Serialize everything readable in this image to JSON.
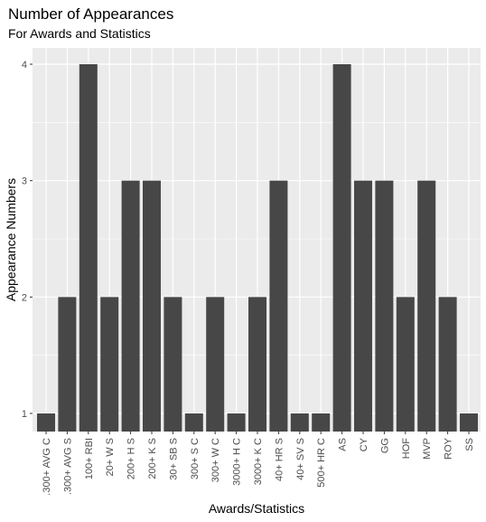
{
  "chart_data": {
    "type": "bar",
    "title": "Number of Appearances",
    "subtitle": "For Awards and Statistics",
    "xlabel": "Awards/Statistics",
    "ylabel": "Appearance Numbers",
    "categories": [
      ".300+ AVG C",
      ".300+ AVG S",
      "100+ RBI",
      "20+ W S",
      "200+ H S",
      "200+ K S",
      "30+ SB S",
      "300+ S C",
      "300+ W C",
      "3000+ H C",
      "3000+ K C",
      "40+ HR S",
      "40+ SV S",
      "500+ HR C",
      "AS",
      "CY",
      "GG",
      "HOF",
      "MVP",
      "ROY",
      "SS"
    ],
    "values": [
      1,
      2,
      4,
      2,
      3,
      3,
      2,
      1,
      2,
      1,
      2,
      3,
      1,
      1,
      4,
      3,
      3,
      2,
      3,
      2,
      1
    ],
    "yticks": [
      "1",
      "2",
      "3",
      "4"
    ],
    "ylim": [
      1,
      4
    ],
    "grid": true,
    "colors": {
      "bar": "#474747",
      "panel": "#ebebeb",
      "gridline": "#ffffff",
      "tick_text": "#4d4d4d"
    }
  }
}
